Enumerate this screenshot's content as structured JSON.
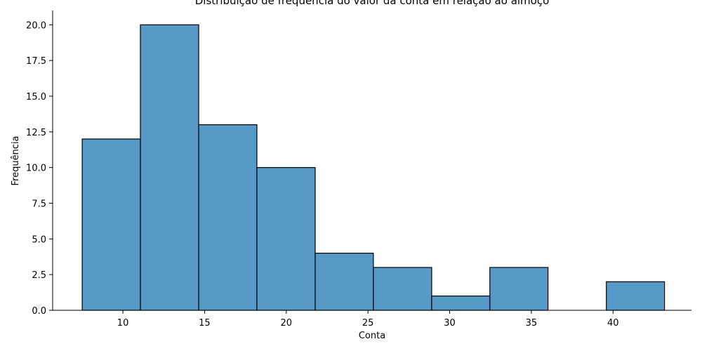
{
  "chart_data": {
    "type": "bar",
    "title": "Distribuição de frequência do valor da conta em relação ao almoço",
    "xlabel": "Conta",
    "ylabel": "Frequência",
    "xlim": [
      5.7,
      44.8
    ],
    "ylim": [
      0,
      21
    ],
    "xticks": [
      10,
      15,
      20,
      25,
      30,
      35,
      40
    ],
    "yticks": [
      0.0,
      2.5,
      5.0,
      7.5,
      10.0,
      12.5,
      15.0,
      17.5,
      20.0
    ],
    "xtick_labels": [
      "10",
      "15",
      "20",
      "25",
      "30",
      "35",
      "40"
    ],
    "ytick_labels": [
      "0.0",
      "2.5",
      "5.0",
      "7.5",
      "10.0",
      "12.5",
      "15.0",
      "17.5",
      "20.0"
    ],
    "bins": [
      {
        "x0": 7.51,
        "x1": 11.07,
        "count": 12
      },
      {
        "x0": 11.07,
        "x1": 14.64,
        "count": 20
      },
      {
        "x0": 14.64,
        "x1": 18.2,
        "count": 13
      },
      {
        "x0": 18.2,
        "x1": 21.77,
        "count": 10
      },
      {
        "x0": 21.77,
        "x1": 25.33,
        "count": 4
      },
      {
        "x0": 25.33,
        "x1": 28.9,
        "count": 3
      },
      {
        "x0": 28.9,
        "x1": 32.46,
        "count": 1
      },
      {
        "x0": 32.46,
        "x1": 36.02,
        "count": 3
      },
      {
        "x0": 36.02,
        "x1": 39.59,
        "count": 0
      },
      {
        "x0": 39.59,
        "x1": 43.15,
        "count": 2
      }
    ],
    "grid": false,
    "colors": {
      "bar_fill": "#5799c7",
      "bar_edge": "#000000"
    }
  }
}
